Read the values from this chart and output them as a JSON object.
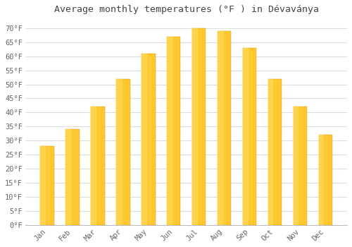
{
  "title": "Average monthly temperatures (°F ) in Dévaványa",
  "months": [
    "Jan",
    "Feb",
    "Mar",
    "Apr",
    "May",
    "Jun",
    "Jul",
    "Aug",
    "Sep",
    "Oct",
    "Nov",
    "Dec"
  ],
  "values": [
    28,
    34,
    42,
    52,
    61,
    67,
    70,
    69,
    63,
    52,
    42,
    32
  ],
  "bar_color_top": "#FFC830",
  "bar_color_bottom": "#FFA010",
  "bar_edge_color": "#E09000",
  "background_color": "#FFFFFF",
  "grid_color": "#DDDDDD",
  "tick_label_color": "#666666",
  "title_color": "#444444",
  "ylim": [
    0,
    73
  ],
  "yticks": [
    0,
    5,
    10,
    15,
    20,
    25,
    30,
    35,
    40,
    45,
    50,
    55,
    60,
    65,
    70
  ],
  "bar_width": 0.55,
  "figsize": [
    5.0,
    3.5
  ],
  "dpi": 100
}
